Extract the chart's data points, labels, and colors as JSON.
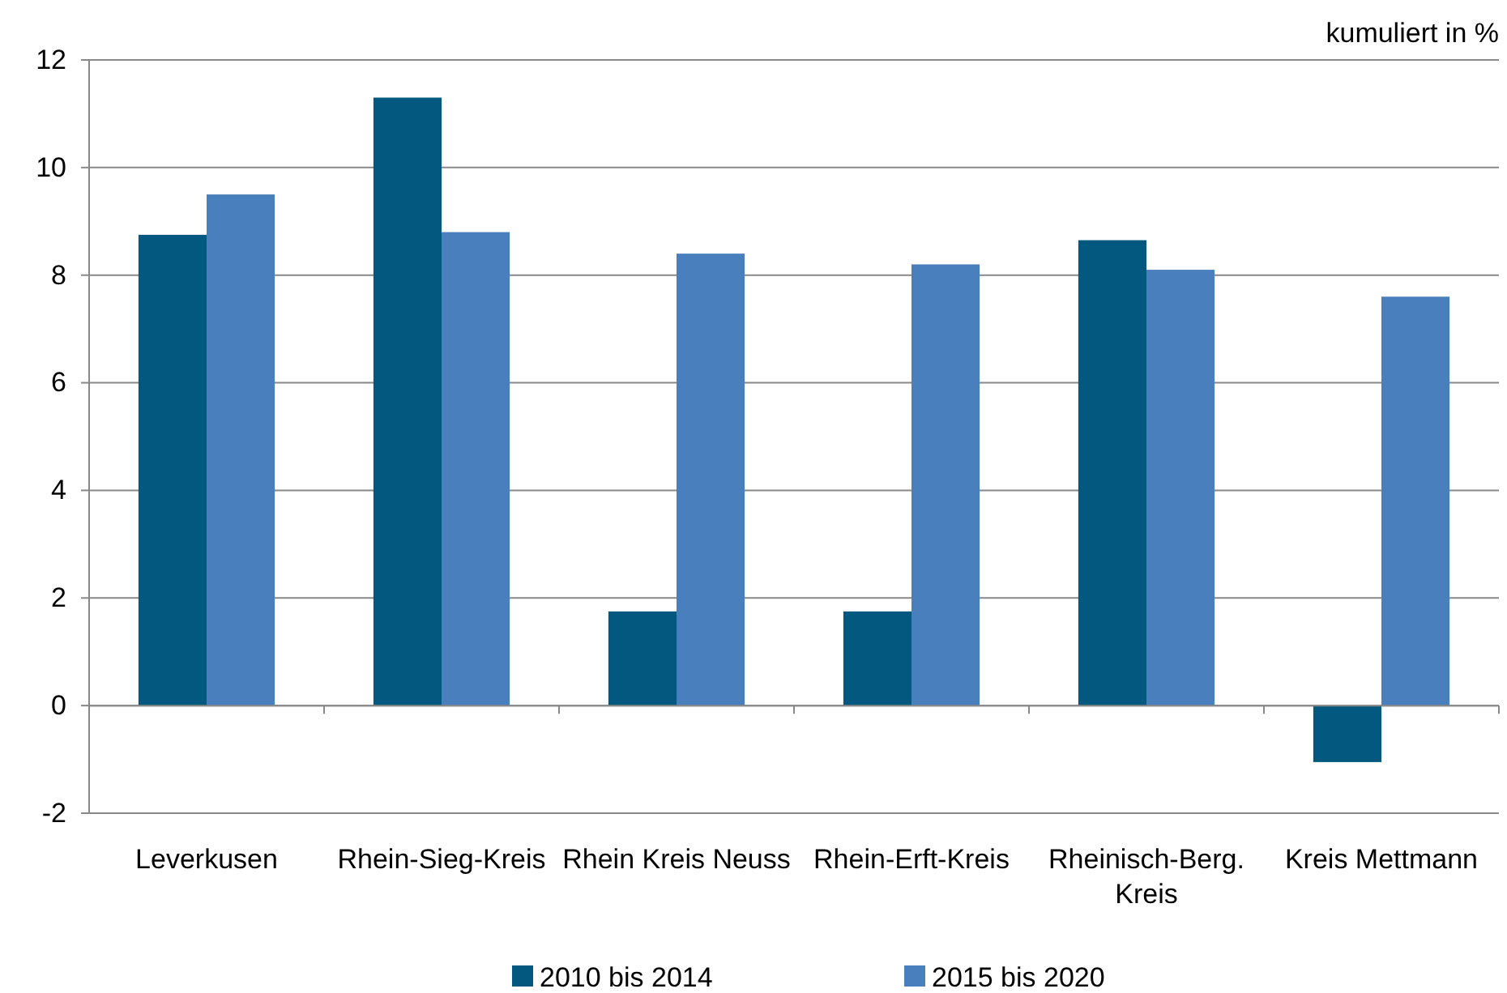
{
  "chart_data": {
    "type": "bar",
    "ylabel": "kumuliert in %",
    "categories": [
      "Leverkusen",
      "Rhein-Sieg-Kreis",
      "Rhein Kreis Neuss",
      "Rhein-Erft-Kreis",
      "Rheinisch-Berg. Kreis",
      "Kreis Mettmann"
    ],
    "series": [
      {
        "name": "2010 bis 2014",
        "color": "#02587e",
        "values": [
          8.75,
          11.3,
          1.75,
          1.75,
          8.65,
          -1.05
        ]
      },
      {
        "name": "2015 bis 2020",
        "color": "#4a7fbd",
        "values": [
          9.5,
          8.8,
          8.4,
          8.2,
          8.1,
          7.6
        ]
      }
    ],
    "ylim": [
      -2,
      12
    ],
    "yticks": [
      -2,
      0,
      2,
      4,
      6,
      8,
      10,
      12
    ],
    "grid": "y",
    "legend": "bottom"
  }
}
